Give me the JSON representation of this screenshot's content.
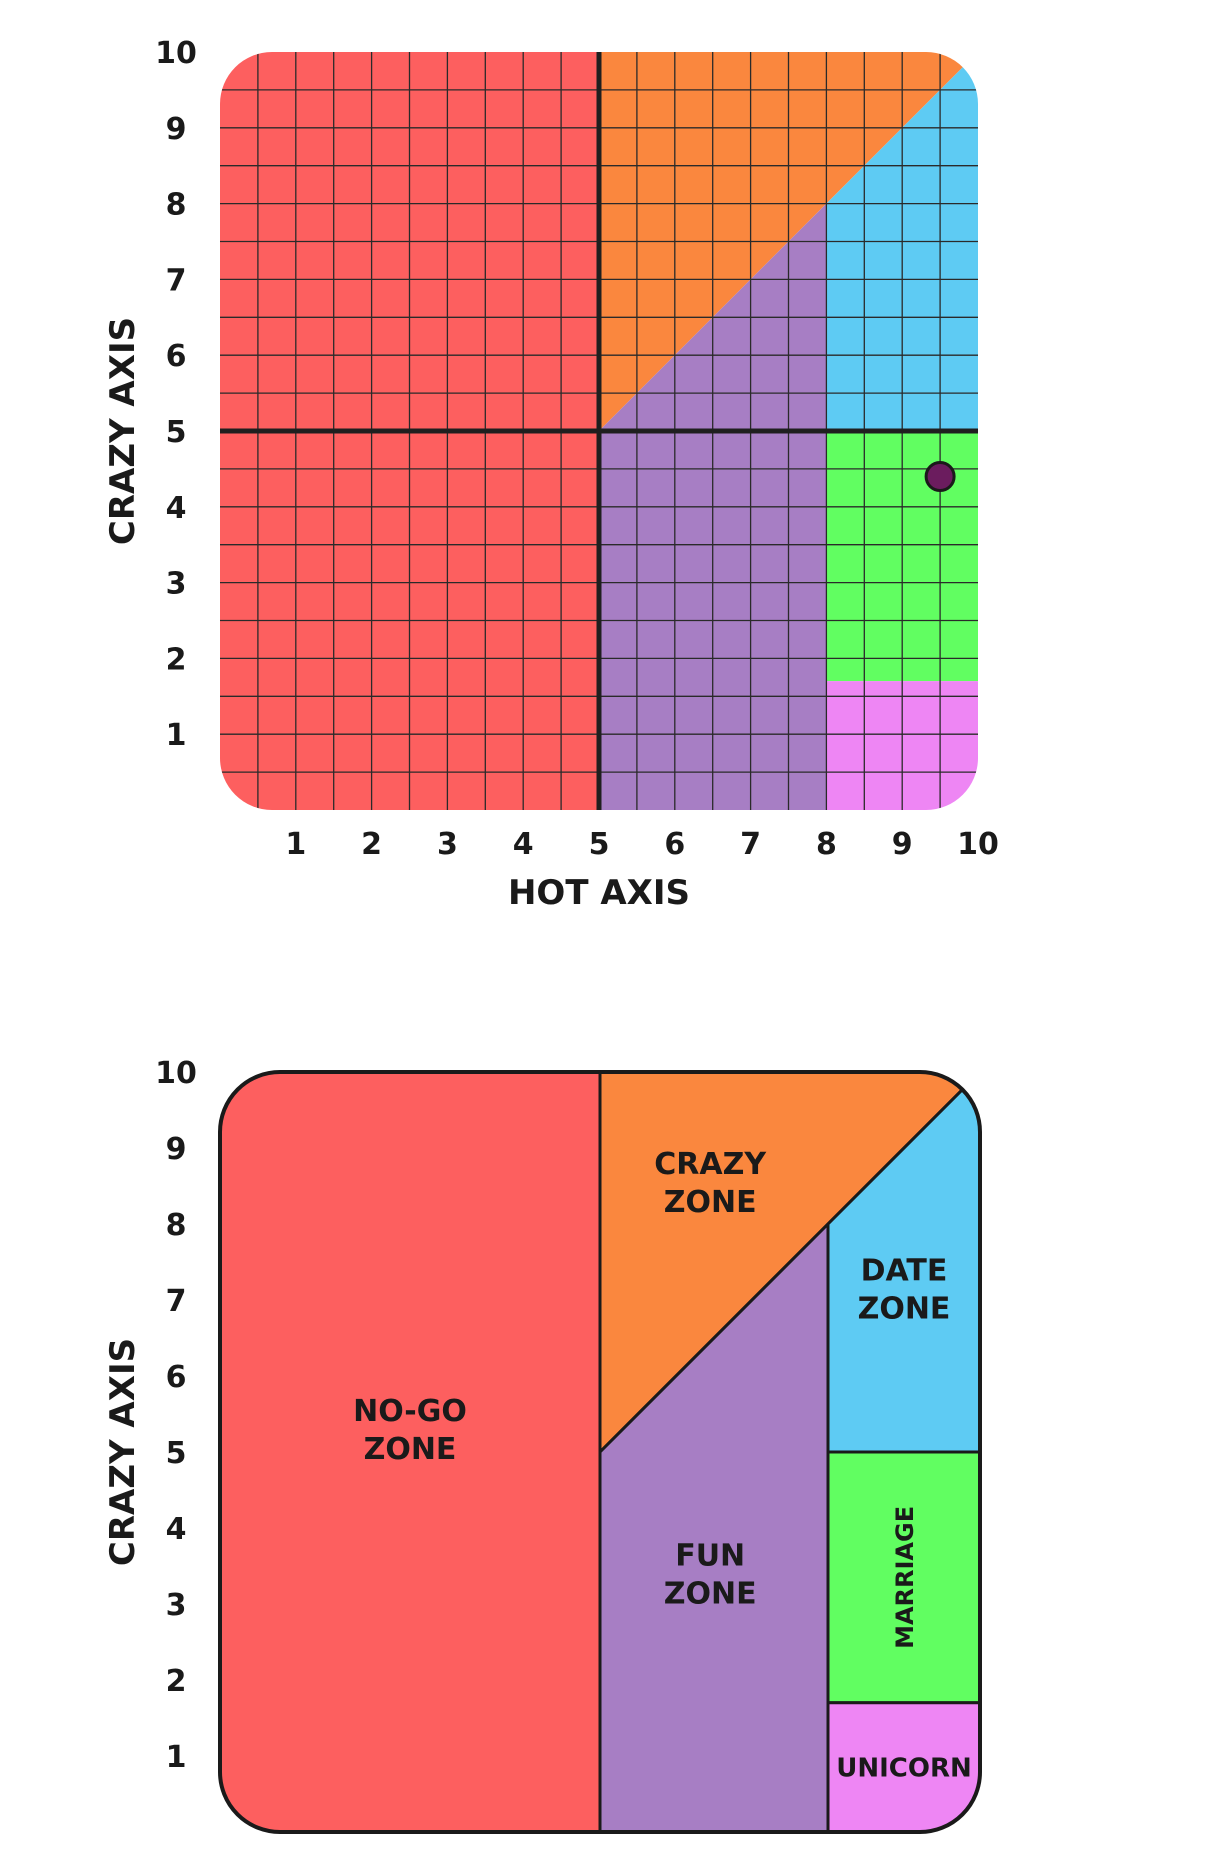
{
  "chart_data": [
    {
      "type": "scatter",
      "title": "",
      "xlabel": "HOT AXIS",
      "ylabel": "CRAZY AXIS",
      "xlim": [
        0,
        10
      ],
      "ylim": [
        0,
        10
      ],
      "x_ticks": [
        1,
        2,
        3,
        4,
        5,
        6,
        7,
        8,
        9,
        10
      ],
      "y_ticks": [
        1,
        2,
        3,
        4,
        5,
        6,
        7,
        8,
        9,
        10
      ],
      "grid": true,
      "grid_step": 0.5,
      "regions": [
        {
          "name": "no-go",
          "color": "#fd5f5f"
        },
        {
          "name": "crazy",
          "color": "#fa873e"
        },
        {
          "name": "fun",
          "color": "#a77ec4"
        },
        {
          "name": "date",
          "color": "#5ecbf3"
        },
        {
          "name": "marriage",
          "color": "#61fe61"
        },
        {
          "name": "unicorn",
          "color": "#ee86f4"
        }
      ],
      "points": [
        {
          "x": 9.5,
          "y": 4.4,
          "color": "#6b1c5e"
        }
      ]
    },
    {
      "type": "area",
      "title": "",
      "xlabel": "",
      "ylabel": "CRAZY AXIS",
      "xlim": [
        0,
        10
      ],
      "ylim": [
        0,
        10
      ],
      "y_ticks": [
        1,
        2,
        3,
        4,
        5,
        6,
        7,
        8,
        9,
        10
      ],
      "grid": false,
      "zones": [
        {
          "name": "no-go",
          "label": [
            "NO-GO",
            "ZONE"
          ],
          "color": "#fd5f5f"
        },
        {
          "name": "crazy",
          "label": [
            "CRAZY",
            "ZONE"
          ],
          "color": "#fa873e"
        },
        {
          "name": "fun",
          "label": [
            "FUN",
            "ZONE"
          ],
          "color": "#a77ec4"
        },
        {
          "name": "date",
          "label": [
            "DATE",
            "ZONE"
          ],
          "color": "#5ecbf3"
        },
        {
          "name": "marriage",
          "label": [
            "MARRIAGE"
          ],
          "color": "#61fe61"
        },
        {
          "name": "unicorn",
          "label": [
            "UNICORN"
          ],
          "color": "#ee86f4"
        }
      ]
    }
  ]
}
